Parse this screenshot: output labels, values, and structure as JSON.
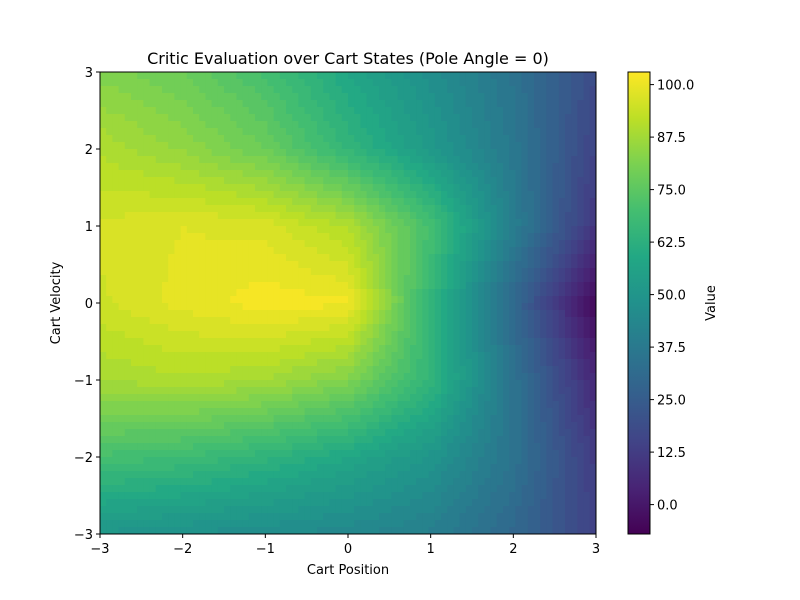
{
  "chart_data": {
    "type": "heatmap",
    "subtype": "filled-contour",
    "title": "Critic Evaluation over Cart States (Pole Angle = 0)",
    "xlabel": "Cart Position",
    "ylabel": "Cart Velocity",
    "xlim": [
      -3,
      3
    ],
    "ylim": [
      -3,
      3
    ],
    "xticks": [
      -3,
      -2,
      -1,
      0,
      1,
      2,
      3
    ],
    "xtick_labels": [
      "−3",
      "−2",
      "−1",
      "0",
      "1",
      "2",
      "3"
    ],
    "yticks": [
      -3,
      -2,
      -1,
      0,
      1,
      2,
      3
    ],
    "ytick_labels": [
      "−3",
      "−2",
      "−1",
      "0",
      "1",
      "2",
      "3"
    ],
    "colormap": "viridis",
    "grid": false,
    "colorbar": {
      "label": "Value",
      "range": [
        -7,
        103
      ],
      "ticks": [
        0.0,
        12.5,
        25.0,
        37.5,
        50.0,
        62.5,
        75.0,
        87.5,
        100.0
      ],
      "tick_labels": [
        "0.0",
        "12.5",
        "25.0",
        "37.5",
        "50.0",
        "62.5",
        "75.0",
        "87.5",
        "100.0"
      ]
    },
    "z_samples": {
      "x": [
        -3,
        -2,
        -1,
        0,
        1,
        2,
        3
      ],
      "y": [
        3,
        2,
        1,
        0,
        -1,
        -2,
        -3
      ],
      "z": [
        [
          82,
          78,
          70,
          58,
          47,
          35,
          18
        ],
        [
          90,
          85,
          78,
          65,
          52,
          37,
          15
        ],
        [
          96,
          98,
          97,
          90,
          70,
          40,
          10
        ],
        [
          95,
          99,
          102,
          101,
          65,
          30,
          -5
        ],
        [
          88,
          90,
          88,
          82,
          65,
          35,
          5
        ],
        [
          70,
          68,
          64,
          58,
          50,
          35,
          12
        ],
        [
          50,
          48,
          46,
          44,
          40,
          30,
          15
        ]
      ]
    }
  }
}
